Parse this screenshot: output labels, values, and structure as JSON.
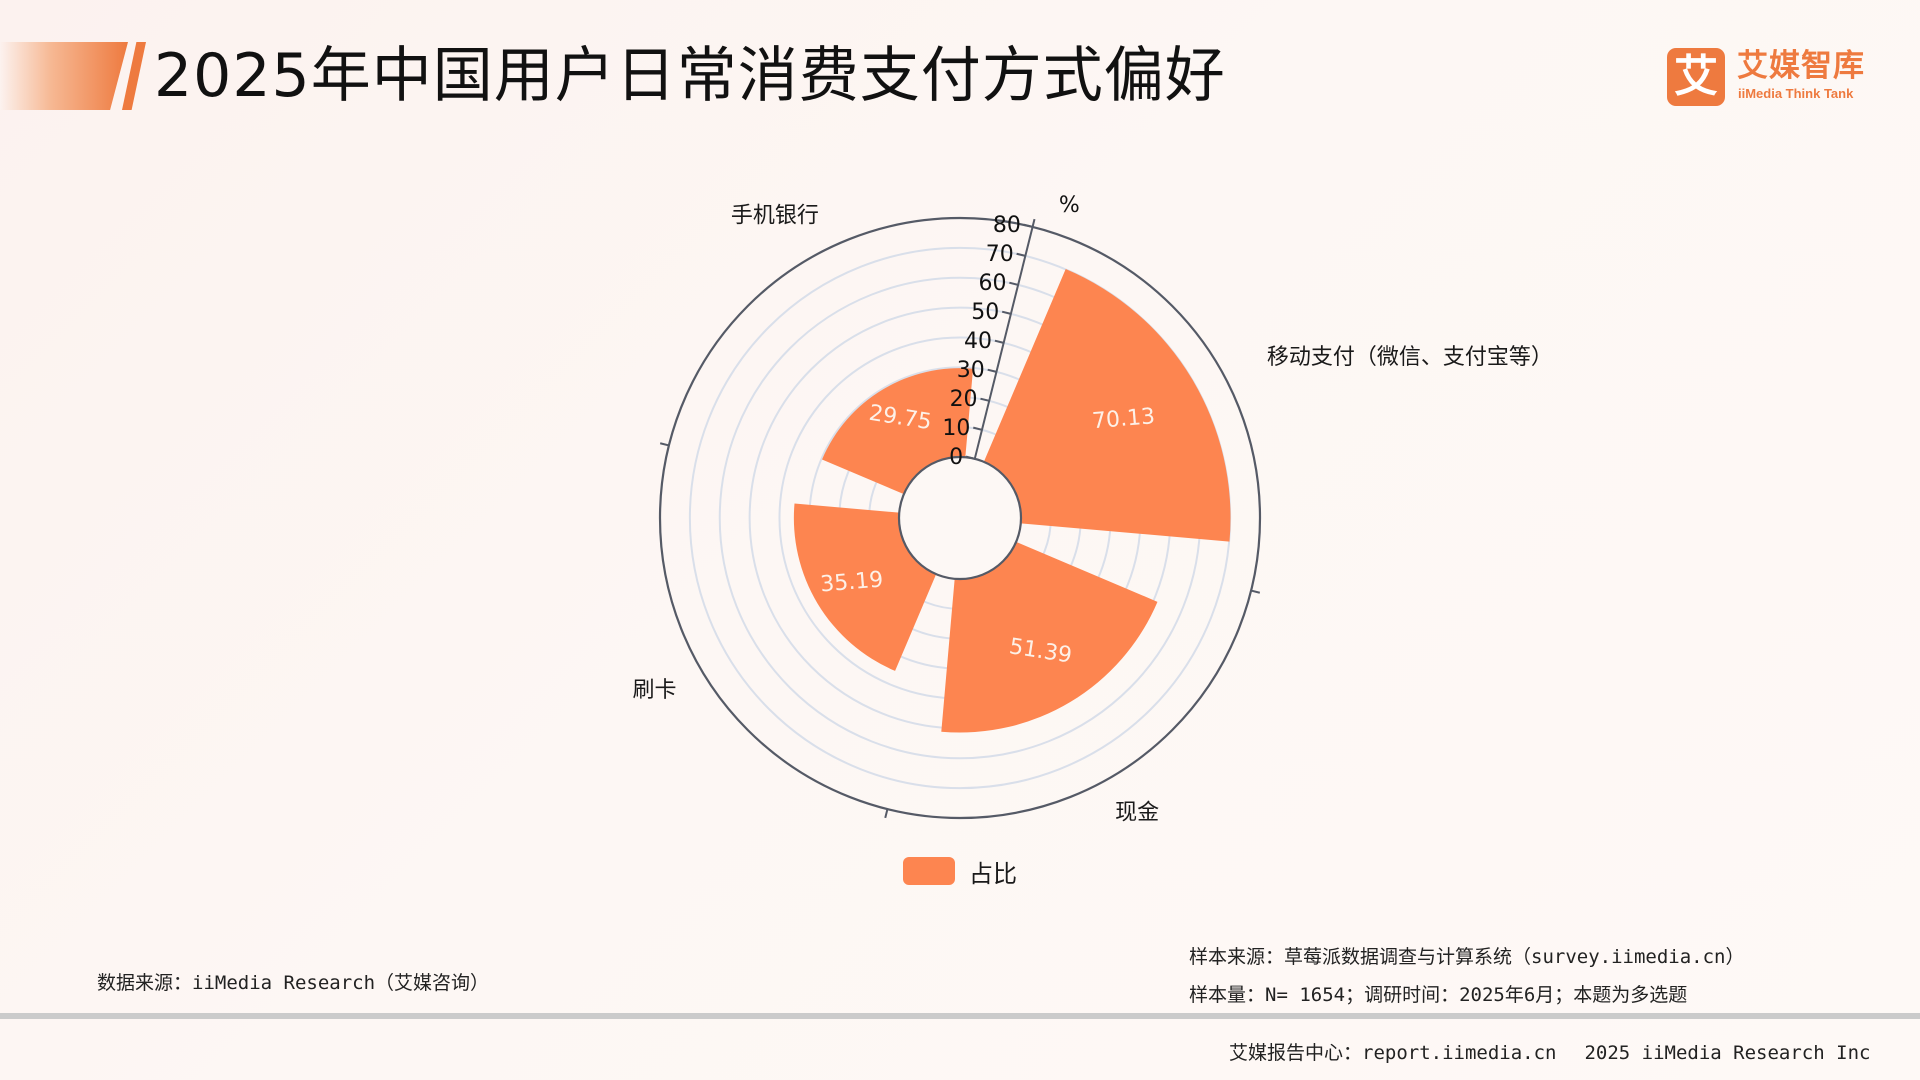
{
  "header": {
    "title": "2025年中国用户日常消费支付方式偏好",
    "logo_mark": "艾",
    "logo_cn": "艾媒智库",
    "logo_en": "iiMedia Think Tank"
  },
  "colors": {
    "accent": "#ee7a3f",
    "bar": "#fd8550",
    "grid": "#d9dfea",
    "axis": "#555a66"
  },
  "chart_data": {
    "type": "bar",
    "subtype": "polar-bar",
    "title": "2025年中国用户日常消费支付方式偏好",
    "categories": [
      "移动支付（微信、支付宝等）",
      "现金",
      "刷卡",
      "手机银行"
    ],
    "series": [
      {
        "name": "占比",
        "values": [
          70.13,
          51.39,
          35.19,
          29.75
        ]
      }
    ],
    "ylabel": "%",
    "ylim": [
      0,
      80
    ],
    "yticks": [
      0,
      10,
      20,
      30,
      40,
      50,
      60,
      70,
      80
    ],
    "grid": true,
    "legend_position": "bottom",
    "start_angle_deg": 14,
    "bar_span_deg": 72
  },
  "legend": {
    "label": "占比"
  },
  "source": {
    "data_source": "数据来源：iiMedia Research（艾媒咨询）",
    "sample_source": "样本来源：草莓派数据调查与计算系统（survey.iimedia.cn）",
    "sample_info": "样本量：N= 1654；调研时间：2025年6月；本题为多选题"
  },
  "footer": {
    "report_center": "艾媒报告中心：report.iimedia.cn",
    "copyright": "2025 iiMedia Research Inc"
  }
}
